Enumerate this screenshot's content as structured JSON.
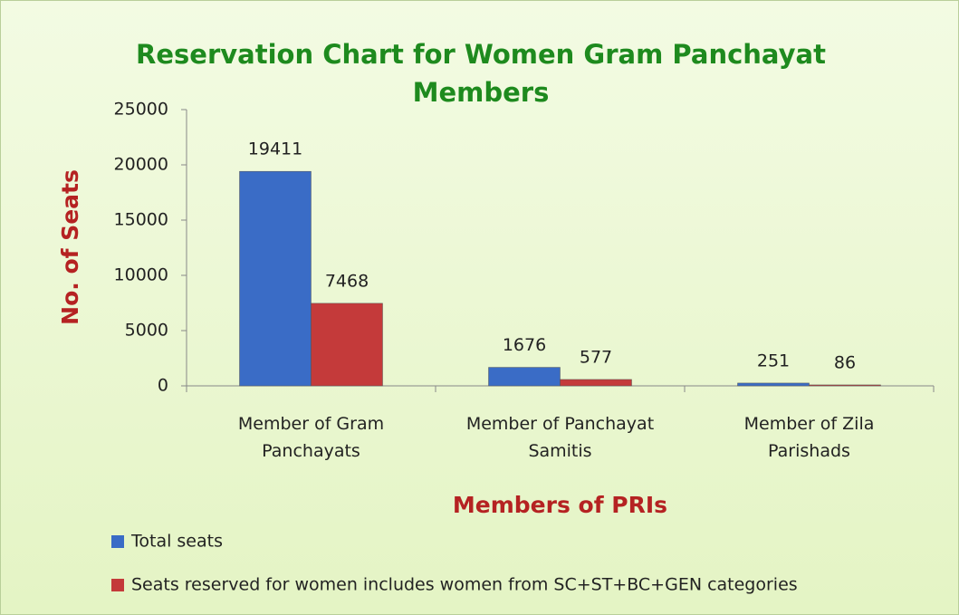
{
  "chart_data": {
    "type": "bar",
    "title": "Reservation Chart for Women Gram Panchayat Members",
    "x_label": "Members of PRIs",
    "y_label": "No. of Seats",
    "categories": [
      "Member of Gram Panchayats",
      "Member of Panchayat Samitis",
      "Member of Zila Parishads"
    ],
    "series": [
      {
        "name": "Total seats",
        "color": "#3a6cc6",
        "values": [
          19411,
          1676,
          251
        ]
      },
      {
        "name": "Seats reserved for women includes women from SC+ST+BC+GEN categories",
        "color": "#c43a3a",
        "values": [
          7468,
          577,
          86
        ]
      }
    ],
    "ylim": [
      0,
      25000
    ],
    "yticks": [
      0,
      5000,
      10000,
      15000,
      20000,
      25000
    ],
    "legend": "bottom"
  }
}
